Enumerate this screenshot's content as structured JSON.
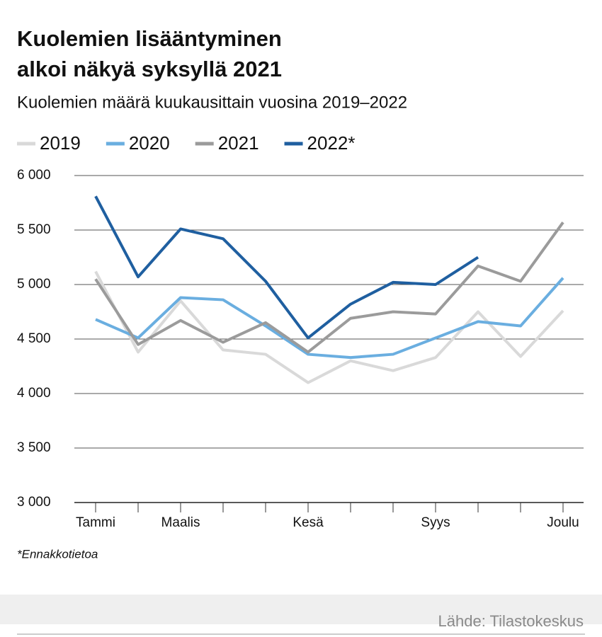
{
  "chart_data": {
    "type": "line",
    "title": [
      "Kuolemien lisääntyminen",
      "alkoi näkyä syksyllä 2021"
    ],
    "subtitle": "Kuolemien määrä kuukausittain vuosina 2019–2022",
    "categories": [
      "Tammi",
      null,
      "Maalis",
      null,
      null,
      "Kesä",
      null,
      null,
      "Syys",
      null,
      null,
      "Joulu"
    ],
    "series": [
      {
        "name": "2019",
        "color": "#d9d9d9",
        "values": [
          5120,
          4380,
          4850,
          4400,
          4360,
          4100,
          4300,
          4210,
          4330,
          4750,
          4340,
          4760
        ]
      },
      {
        "name": "2020",
        "color": "#6aaee0",
        "values": [
          4680,
          4510,
          4880,
          4860,
          4620,
          4360,
          4330,
          4360,
          4510,
          4660,
          4620,
          5060
        ]
      },
      {
        "name": "2021",
        "color": "#9b9b9b",
        "values": [
          5050,
          4450,
          4670,
          4470,
          4650,
          4380,
          4690,
          4750,
          4730,
          5170,
          5030,
          5570
        ]
      },
      {
        "name": "2022*",
        "color": "#1f5fa0",
        "values": [
          5810,
          5070,
          5510,
          5420,
          5030,
          4510,
          4820,
          5020,
          5000,
          5250,
          null,
          null
        ]
      }
    ],
    "ylim": [
      3000,
      6000
    ],
    "yticks": [
      {
        "value": 3000,
        "label": "3 000"
      },
      {
        "value": 3500,
        "label": "3 500"
      },
      {
        "value": 4000,
        "label": "4 000"
      },
      {
        "value": 4500,
        "label": "4 500"
      },
      {
        "value": 5000,
        "label": "5 000"
      },
      {
        "value": 5500,
        "label": "5 500"
      },
      {
        "value": 6000,
        "label": "6 000"
      }
    ],
    "grid": true,
    "note": "*Ennakkotietoa",
    "source": "Lähde: Tilastokeskus"
  }
}
